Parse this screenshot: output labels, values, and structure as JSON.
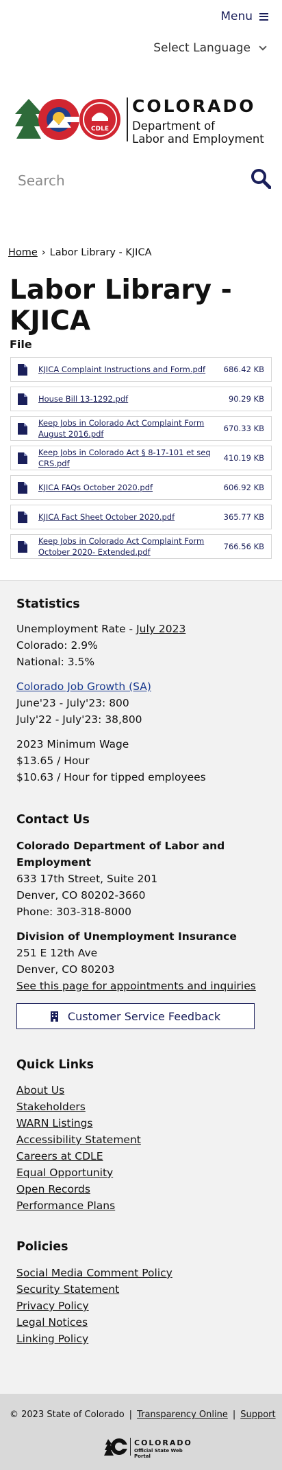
{
  "header": {
    "menu_label": "Menu",
    "language_label": "Select Language",
    "logo_state": "COLORADO",
    "logo_dept_line1": "Department of",
    "logo_dept_line2": "Labor and Employment",
    "logo_badge": "CDLE",
    "search_placeholder": "Search"
  },
  "breadcrumb": {
    "home": "Home",
    "separator": "›",
    "current": "Labor Library - KJICA"
  },
  "page": {
    "title": "Labor Library - KJICA",
    "file_label": "File",
    "files": [
      {
        "name": "KJICA Complaint Instructions and Form.pdf",
        "size": "686.42 KB"
      },
      {
        "name": "House Bill 13-1292.pdf",
        "size": "90.29 KB"
      },
      {
        "name": "Keep Jobs in Colorado Act Complaint Form August 2016.pdf",
        "size": "670.33 KB"
      },
      {
        "name": "Keep Jobs in Colorado Act § 8-17-101 et seq CRS.pdf",
        "size": "410.19 KB"
      },
      {
        "name": "KJICA FAQs October 2020.pdf",
        "size": "606.92 KB"
      },
      {
        "name": "KJICA Fact Sheet October 2020.pdf",
        "size": "365.77 KB"
      },
      {
        "name": "Keep Jobs in Colorado Act Complaint Form October 2020- Extended.pdf",
        "size": "766.56 KB"
      }
    ]
  },
  "statistics": {
    "title": "Statistics",
    "unemployment_prefix": "Unemployment Rate - ",
    "unemployment_link": "July 2023",
    "colorado": "Colorado: 2.9%",
    "national": "National: 3.5%",
    "job_growth_link": "Colorado Job Growth (SA)",
    "growth_month": "June'23 - July'23: 800",
    "growth_year": "July'22 - July'23: 38,800",
    "min_wage_title": "2023 Minimum Wage",
    "min_wage": "$13.65 / Hour",
    "min_wage_tipped": "$10.63 / Hour for tipped employees"
  },
  "contact": {
    "title": "Contact Us",
    "org_line1": "Colorado Department of Labor and",
    "org_line2": "Employment",
    "address1": "633 17th Street, Suite 201",
    "address2": "Denver, CO  80202-3660",
    "phone": "Phone: 303-318-8000",
    "ui_title": "Division of Unemployment Insurance",
    "ui_address1": "251 E 12th Ave",
    "ui_address2": "Denver, CO  80203",
    "ui_link": "See this page for appointments and inquiries",
    "feedback_label": "Customer Service Feedback"
  },
  "quick_links": {
    "title": "Quick Links",
    "items": [
      "About Us",
      "Stakeholders",
      "WARN Listings",
      "Accessibility Statement",
      "Careers at CDLE",
      "Equal Opportunity",
      "Open Records",
      "Performance Plans"
    ]
  },
  "policies": {
    "title": "Policies",
    "items": [
      "Social Media Comment Policy",
      "Security Statement",
      "Privacy Policy",
      "Legal Notices",
      "Linking Policy"
    ]
  },
  "bottom": {
    "copyright": "© 2023 State of Colorado",
    "sep": "|",
    "transparency": "Transparency Online",
    "support": "Support",
    "portal_name": "COLORADO",
    "portal_sub": "Official State Web Portal"
  },
  "colors": {
    "navy": "#1a1f5a",
    "link_blue": "#1a3a8f",
    "footer_bg": "#f2f2f2",
    "bottom_bg": "#d9d9d9"
  }
}
